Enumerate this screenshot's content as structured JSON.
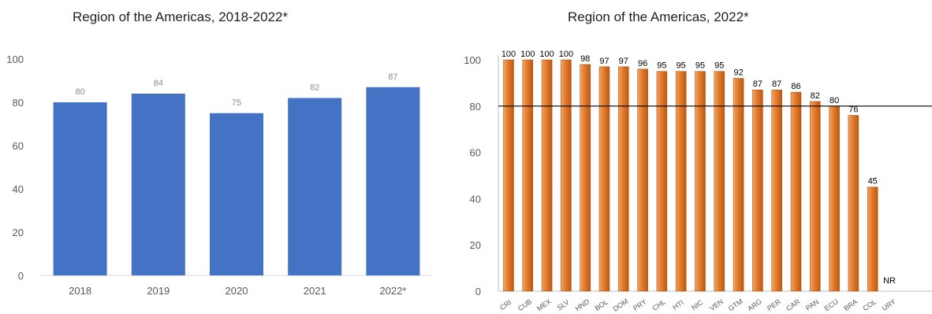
{
  "charts": [
    {
      "title": "Region of the Americas, 2018-2022*"
    },
    {
      "title": "Region of the Americas, 2022*"
    }
  ],
  "colors": {
    "blue_bar": "#4472c4",
    "orange_light": "#f4a460",
    "orange_dark": "#c0580f",
    "axis_text": "#595959",
    "label_text_left": "#8c8c8c",
    "label_text_right": "#000000",
    "threshold_line": "#000000"
  },
  "chart_data": [
    {
      "type": "bar",
      "title": "Region of the Americas, 2018-2022*",
      "categories": [
        "2018",
        "2019",
        "2020",
        "2021",
        "2022*"
      ],
      "values": [
        80,
        84,
        75,
        82,
        87
      ],
      "data_labels": [
        "80",
        "84",
        "75",
        "82",
        "87"
      ],
      "ylim": [
        0,
        100
      ],
      "yticks": [
        0,
        20,
        40,
        60,
        80,
        100
      ],
      "grid": false,
      "legend": "none"
    },
    {
      "type": "bar",
      "title": "Region of the Americas, 2022*",
      "categories": [
        "CRI",
        "CUB",
        "MEX",
        "SLV",
        "HND",
        "BOL",
        "DOM",
        "PRY",
        "CHL",
        "HTI",
        "NIC",
        "VEN",
        "GTM",
        "ARG",
        "PER",
        "CAR",
        "PAN",
        "ECU",
        "BRA",
        "COL",
        "URY"
      ],
      "values": [
        100,
        100,
        100,
        100,
        98,
        97,
        97,
        96,
        95,
        95,
        95,
        95,
        92,
        87,
        87,
        86,
        82,
        80,
        76,
        45,
        null
      ],
      "data_labels": [
        "100",
        "100",
        "100",
        "100",
        "98",
        "97",
        "97",
        "96",
        "95",
        "95",
        "95",
        "95",
        "92",
        "87",
        "87",
        "86",
        "82",
        "80",
        "76",
        "45",
        "NR"
      ],
      "ylim": [
        0,
        100
      ],
      "yticks": [
        0,
        20,
        40,
        60,
        80,
        100
      ],
      "reference_line": 80,
      "grid": false,
      "legend": "none"
    }
  ]
}
